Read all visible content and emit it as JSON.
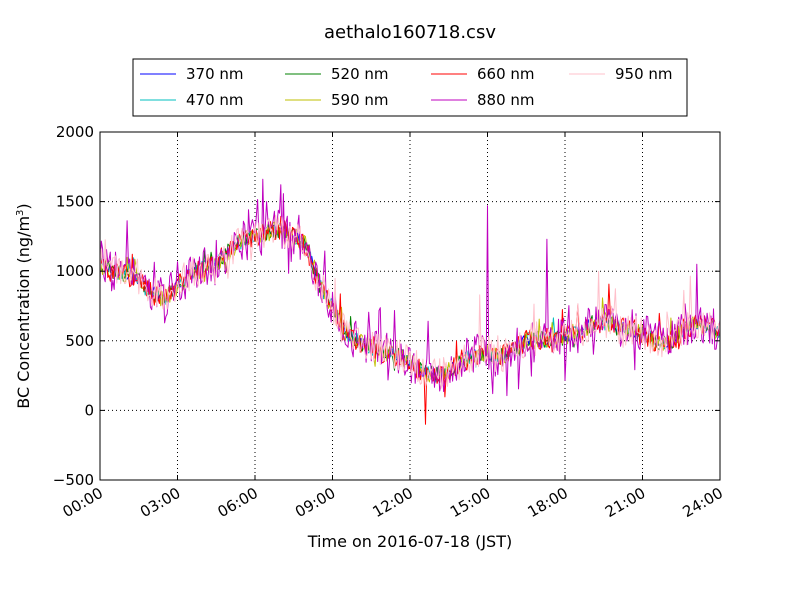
{
  "chart_data": {
    "type": "line",
    "title": "aethalo160718.csv",
    "xlabel": "Time on 2016-07-18 (JST)",
    "ylabel_main": "BC Concentration (ng/m",
    "ylabel_sup": "3",
    "ylabel_end": ")",
    "xlim": [
      0,
      24
    ],
    "ylim": [
      -500,
      2000
    ],
    "xticks": [
      {
        "value": 0,
        "label": "00:00"
      },
      {
        "value": 3,
        "label": "03:00"
      },
      {
        "value": 6,
        "label": "06:00"
      },
      {
        "value": 9,
        "label": "09:00"
      },
      {
        "value": 12,
        "label": "12:00"
      },
      {
        "value": 15,
        "label": "15:00"
      },
      {
        "value": 18,
        "label": "18:00"
      },
      {
        "value": 21,
        "label": "21:00"
      },
      {
        "value": 24,
        "label": "24:00"
      }
    ],
    "yticks": [
      {
        "value": -500,
        "label": "−500"
      },
      {
        "value": 0,
        "label": "0"
      },
      {
        "value": 500,
        "label": "500"
      },
      {
        "value": 1000,
        "label": "1000"
      },
      {
        "value": 1500,
        "label": "1500"
      },
      {
        "value": 2000,
        "label": "2000"
      }
    ],
    "grid": true,
    "legend_position": "top",
    "series": [
      {
        "name": "370 nm",
        "color": "#0000ff",
        "noise": 45,
        "spikes": 0.0
      },
      {
        "name": "470 nm",
        "color": "#00bfbf",
        "noise": 55,
        "spikes": 0.02
      },
      {
        "name": "520 nm",
        "color": "#008000",
        "noise": 60,
        "spikes": 0.02
      },
      {
        "name": "590 nm",
        "color": "#bfbf00",
        "noise": 70,
        "spikes": 0.03
      },
      {
        "name": "660 nm",
        "color": "#ff0000",
        "noise": 85,
        "spikes": 0.04
      },
      {
        "name": "880 nm",
        "color": "#bf00bf",
        "noise": 150,
        "spikes": 0.1
      },
      {
        "name": "950 nm",
        "color": "#ffc0cb",
        "noise": 120,
        "spikes": 0.08
      }
    ],
    "baseline": {
      "x": [
        0,
        0.5,
        1.0,
        1.5,
        2.0,
        2.5,
        3.0,
        3.5,
        4.0,
        4.5,
        5.0,
        5.5,
        6.0,
        6.5,
        7.0,
        7.5,
        8.0,
        8.5,
        9.0,
        9.5,
        10.0,
        10.5,
        11.0,
        11.5,
        12.0,
        12.5,
        13.0,
        13.5,
        14.0,
        14.5,
        15.0,
        15.5,
        16.0,
        16.5,
        17.0,
        17.5,
        18.0,
        18.5,
        19.0,
        19.5,
        20.0,
        20.5,
        21.0,
        21.5,
        22.0,
        22.5,
        23.0,
        23.5,
        24.0
      ],
      "y": [
        1050,
        1000,
        980,
        950,
        850,
        800,
        900,
        980,
        1030,
        1050,
        1150,
        1220,
        1250,
        1280,
        1300,
        1250,
        1180,
        900,
        750,
        550,
        500,
        450,
        420,
        400,
        350,
        280,
        250,
        280,
        350,
        400,
        420,
        380,
        450,
        500,
        520,
        500,
        530,
        560,
        620,
        650,
        600,
        580,
        550,
        500,
        480,
        560,
        620,
        600,
        560
      ]
    },
    "spike_events": [
      {
        "x": 6.3,
        "y": 1660,
        "series": "880 nm"
      },
      {
        "x": 12.6,
        "y": -100,
        "series": "660 nm"
      },
      {
        "x": 15.0,
        "y": 1470,
        "series": "880 nm"
      },
      {
        "x": 17.3,
        "y": 1230,
        "series": "880 nm"
      },
      {
        "x": 14.7,
        "y": 830,
        "series": "950 nm"
      }
    ]
  }
}
